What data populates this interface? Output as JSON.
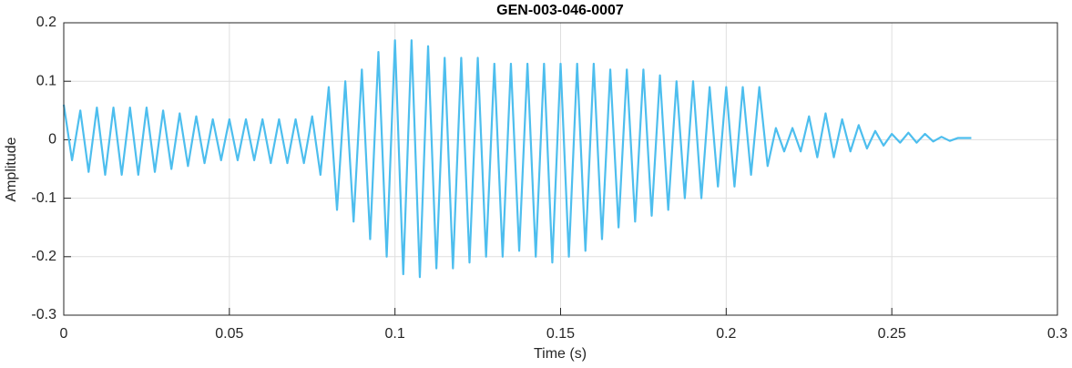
{
  "chart_data": {
    "type": "line",
    "title": "GEN-003-046-0007",
    "xlabel": "Time (s)",
    "ylabel": "Amplitude",
    "grid": true,
    "xlim": [
      0,
      0.3
    ],
    "ylim": [
      -0.3,
      0.2
    ],
    "xticks": [
      0,
      0.05,
      0.1,
      0.15,
      0.2,
      0.25,
      0.3
    ],
    "yticks": [
      -0.3,
      -0.2,
      -0.1,
      0,
      0.1,
      0.2
    ],
    "x": [
      0,
      0.0025,
      0.005,
      0.0075,
      0.01,
      0.0125,
      0.015,
      0.0175,
      0.02,
      0.0225,
      0.025,
      0.0275,
      0.03,
      0.0325,
      0.035,
      0.0375,
      0.04,
      0.0425,
      0.045,
      0.0475,
      0.05,
      0.0525,
      0.055,
      0.0575,
      0.06,
      0.0625,
      0.065,
      0.0675,
      0.07,
      0.0725,
      0.075,
      0.0775,
      0.08,
      0.0825,
      0.085,
      0.0875,
      0.09,
      0.0925,
      0.095,
      0.0975,
      0.1,
      0.1025,
      0.105,
      0.1075,
      0.11,
      0.1125,
      0.115,
      0.1175,
      0.12,
      0.1225,
      0.125,
      0.1275,
      0.13,
      0.1325,
      0.135,
      0.1375,
      0.14,
      0.1425,
      0.145,
      0.1475,
      0.15,
      0.1525,
      0.155,
      0.1575,
      0.16,
      0.1625,
      0.165,
      0.1675,
      0.17,
      0.1725,
      0.175,
      0.1775,
      0.18,
      0.1825,
      0.185,
      0.1875,
      0.19,
      0.1925,
      0.195,
      0.1975,
      0.2,
      0.2025,
      0.205,
      0.2075,
      0.21,
      0.2125,
      0.215,
      0.2175,
      0.22,
      0.2225,
      0.225,
      0.2275,
      0.23,
      0.2325,
      0.235,
      0.2375,
      0.24,
      0.2425,
      0.245,
      0.2475,
      0.25,
      0.2525,
      0.255,
      0.2575,
      0.26,
      0.2625,
      0.265,
      0.2675,
      0.27,
      0.274
    ],
    "series": [
      {
        "name": "Amplitude",
        "color": "#4dbeee",
        "values": [
          0.06,
          -0.035,
          0.05,
          -0.055,
          0.055,
          -0.06,
          0.055,
          -0.06,
          0.055,
          -0.06,
          0.055,
          -0.055,
          0.05,
          -0.05,
          0.045,
          -0.045,
          0.04,
          -0.04,
          0.035,
          -0.035,
          0.035,
          -0.035,
          0.035,
          -0.035,
          0.035,
          -0.04,
          0.035,
          -0.04,
          0.035,
          -0.04,
          0.04,
          -0.06,
          0.09,
          -0.12,
          0.1,
          -0.14,
          0.12,
          -0.17,
          0.15,
          -0.2,
          0.17,
          -0.23,
          0.17,
          -0.235,
          0.16,
          -0.22,
          0.14,
          -0.22,
          0.14,
          -0.21,
          0.14,
          -0.2,
          0.13,
          -0.2,
          0.13,
          -0.19,
          0.13,
          -0.2,
          0.13,
          -0.21,
          0.13,
          -0.2,
          0.13,
          -0.19,
          0.13,
          -0.17,
          0.12,
          -0.15,
          0.12,
          -0.14,
          0.12,
          -0.13,
          0.11,
          -0.12,
          0.1,
          -0.1,
          0.1,
          -0.1,
          0.09,
          -0.08,
          0.09,
          -0.08,
          0.09,
          -0.06,
          0.09,
          -0.045,
          0.02,
          -0.02,
          0.02,
          -0.02,
          0.04,
          -0.03,
          0.045,
          -0.03,
          0.035,
          -0.02,
          0.025,
          -0.015,
          0.015,
          -0.01,
          0.01,
          -0.005,
          0.012,
          -0.005,
          0.01,
          -0.003,
          0.005,
          -0.002,
          0.003,
          0.003
        ]
      }
    ]
  }
}
